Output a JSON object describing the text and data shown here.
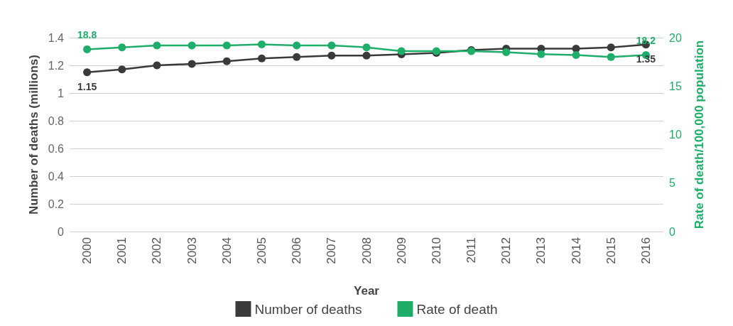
{
  "chart_data": {
    "type": "line",
    "xlabel": "Year",
    "ylabel": "Number of deaths (millions)",
    "y2label": "Rate of death/100,000 population",
    "categories": [
      "2000",
      "2001",
      "2002",
      "2003",
      "2004",
      "2005",
      "2006",
      "2007",
      "2008",
      "2009",
      "2010",
      "2011",
      "2012",
      "2013",
      "2014",
      "2015",
      "2016"
    ],
    "series": [
      {
        "name": "Number of deaths",
        "color": "#3a3a3a",
        "values": [
          1.15,
          1.17,
          1.2,
          1.21,
          1.23,
          1.25,
          1.26,
          1.27,
          1.27,
          1.28,
          1.29,
          1.31,
          1.32,
          1.32,
          1.32,
          1.33,
          1.35
        ],
        "value_labels": [
          "1.15",
          null,
          null,
          null,
          null,
          null,
          null,
          null,
          null,
          null,
          null,
          null,
          null,
          null,
          null,
          null,
          "1.35"
        ]
      },
      {
        "name": "Rate of death",
        "color": "#1fae6a",
        "axis": "y2",
        "values": [
          18.8,
          19.0,
          19.2,
          19.2,
          19.2,
          19.3,
          19.2,
          19.2,
          19.0,
          18.6,
          18.6,
          18.6,
          18.5,
          18.3,
          18.2,
          18.0,
          18.2
        ],
        "value_labels": [
          "18.8",
          null,
          null,
          null,
          null,
          null,
          null,
          null,
          null,
          null,
          null,
          null,
          null,
          null,
          null,
          null,
          "18.2"
        ]
      }
    ],
    "ylim": [
      0,
      1.4
    ],
    "yticks": [
      0,
      0.2,
      0.4,
      0.6,
      0.8,
      1.0,
      1.2,
      1.4
    ],
    "y2lim": [
      0,
      20
    ],
    "y2ticks": [
      0,
      5,
      10,
      15,
      20
    ],
    "grid": "y",
    "legend": "bottom",
    "marker": "circle",
    "line_style": "solid"
  }
}
